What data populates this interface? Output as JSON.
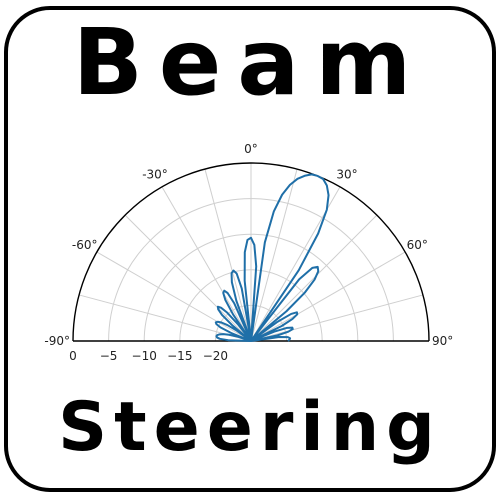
{
  "icon": {
    "title_line1": "Beam",
    "title_line2": "Steering"
  },
  "chart_data": {
    "type": "polar-line",
    "title": "",
    "angular_axis": {
      "unit": "degrees",
      "range": [
        -90,
        90
      ],
      "ticks": [
        -90,
        -60,
        -30,
        0,
        30,
        60,
        90
      ],
      "tick_labels": [
        "-90°",
        "-60°",
        "-30°",
        "0°",
        "30°",
        "60°",
        "90°"
      ]
    },
    "radial_axis": {
      "unit": "dB",
      "range": [
        -25,
        0
      ],
      "ticks": [
        0,
        -5,
        -10,
        -15,
        -20
      ],
      "tick_labels": [
        "0",
        "−5",
        "−10",
        "−15",
        "−20"
      ]
    },
    "grid": true,
    "series": [
      {
        "color": "#1f6fa8",
        "points": [
          [
            -90,
            -25
          ],
          [
            -88,
            -21.8
          ],
          [
            -86,
            -20.6
          ],
          [
            -84,
            -20.2
          ],
          [
            -82,
            -20.1
          ],
          [
            -80,
            -20.2
          ],
          [
            -78,
            -20.5
          ],
          [
            -76,
            -21
          ],
          [
            -74,
            -21.8
          ],
          [
            -72,
            -23
          ],
          [
            -70,
            -25
          ],
          [
            -68,
            -22
          ],
          [
            -66,
            -20.3
          ],
          [
            -64,
            -19.6
          ],
          [
            -62,
            -19.4
          ],
          [
            -60,
            -19.6
          ],
          [
            -58,
            -20.1
          ],
          [
            -56,
            -21
          ],
          [
            -54,
            -22.4
          ],
          [
            -52,
            -25
          ],
          [
            -50,
            -21.5
          ],
          [
            -48,
            -19.5
          ],
          [
            -46,
            -18.6
          ],
          [
            -44,
            -18.3
          ],
          [
            -42,
            -18.7
          ],
          [
            -40,
            -19.8
          ],
          [
            -38,
            -22
          ],
          [
            -36,
            -25
          ],
          [
            -34,
            -20.5
          ],
          [
            -32,
            -18.2
          ],
          [
            -30,
            -17.2
          ],
          [
            -28,
            -17
          ],
          [
            -26,
            -17.5
          ],
          [
            -24,
            -19.2
          ],
          [
            -22,
            -25
          ],
          [
            -20,
            -19
          ],
          [
            -18,
            -16.3
          ],
          [
            -16,
            -15.1
          ],
          [
            -14,
            -14.8
          ],
          [
            -12,
            -15.3
          ],
          [
            -10,
            -17.5
          ],
          [
            -8,
            -25
          ],
          [
            -6,
            -16.5
          ],
          [
            -4,
            -12.5
          ],
          [
            -2,
            -10.8
          ],
          [
            0,
            -10.5
          ],
          [
            2,
            -11.5
          ],
          [
            4,
            -14.5
          ],
          [
            6,
            -25
          ],
          [
            8,
            -11
          ],
          [
            10,
            -6.5
          ],
          [
            12,
            -4
          ],
          [
            14,
            -2.4
          ],
          [
            16,
            -1.3
          ],
          [
            18,
            -0.6
          ],
          [
            20,
            -0.1
          ],
          [
            22,
            0
          ],
          [
            24,
            -0.1
          ],
          [
            26,
            -0.7
          ],
          [
            28,
            -1.8
          ],
          [
            30,
            -3.7
          ],
          [
            32,
            -7.2
          ],
          [
            34,
            -13
          ],
          [
            36,
            -25
          ],
          [
            38,
            -14
          ],
          [
            40,
            -11.6
          ],
          [
            42,
            -11
          ],
          [
            44,
            -11.4
          ],
          [
            46,
            -12.6
          ],
          [
            48,
            -14.8
          ],
          [
            50,
            -18.5
          ],
          [
            52,
            -25
          ],
          [
            54,
            -20.5
          ],
          [
            56,
            -18.2
          ],
          [
            58,
            -17.4
          ],
          [
            60,
            -17.5
          ],
          [
            62,
            -18.4
          ],
          [
            64,
            -20.2
          ],
          [
            66,
            -25
          ],
          [
            68,
            -21.5
          ],
          [
            70,
            -19.6
          ],
          [
            72,
            -18.9
          ],
          [
            74,
            -18.9
          ],
          [
            76,
            -19.6
          ],
          [
            78,
            -21.2
          ],
          [
            80,
            -25
          ],
          [
            82,
            -21
          ],
          [
            84,
            -19.8
          ],
          [
            86,
            -19.5
          ],
          [
            88,
            -19.6
          ],
          [
            90,
            -19.8
          ]
        ]
      }
    ]
  }
}
